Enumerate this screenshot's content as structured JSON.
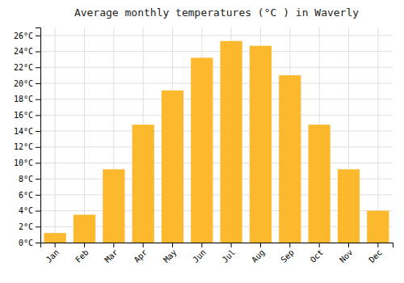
{
  "chart_data": {
    "type": "bar",
    "title": "Average monthly temperatures (°C ) in Waverly",
    "categories": [
      "Jan",
      "Feb",
      "Mar",
      "Apr",
      "May",
      "Jun",
      "Jul",
      "Aug",
      "Sep",
      "Oct",
      "Nov",
      "Dec"
    ],
    "values": [
      1.2,
      3.5,
      9.2,
      14.8,
      19.1,
      23.2,
      25.3,
      24.7,
      21.0,
      14.8,
      9.2,
      4.0
    ],
    "color": "#FDB92E",
    "ylim": [
      0,
      27
    ],
    "yticks": [
      {
        "value": 0,
        "label": "0°C"
      },
      {
        "value": 2,
        "label": "2°C"
      },
      {
        "value": 4,
        "label": "4°C"
      },
      {
        "value": 6,
        "label": "6°C"
      },
      {
        "value": 8,
        "label": "8°C"
      },
      {
        "value": 10,
        "label": "10°C"
      },
      {
        "value": 12,
        "label": "12°C"
      },
      {
        "value": 14,
        "label": "14°C"
      },
      {
        "value": 16,
        "label": "16°C"
      },
      {
        "value": 18,
        "label": "18°C"
      },
      {
        "value": 20,
        "label": "20°C"
      },
      {
        "value": 22,
        "label": "22°C"
      },
      {
        "value": 24,
        "label": "24°C"
      },
      {
        "value": 26,
        "label": "26°C"
      }
    ],
    "grid": true
  }
}
